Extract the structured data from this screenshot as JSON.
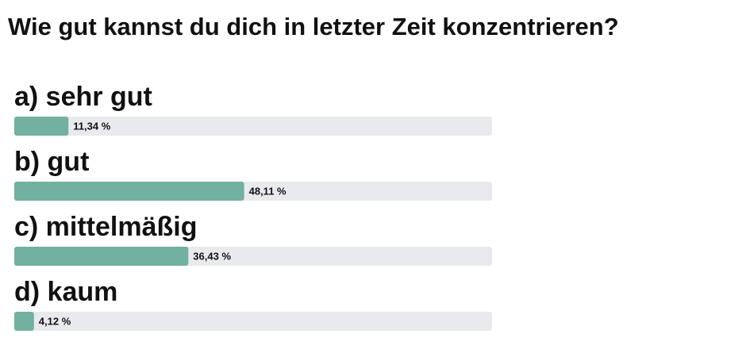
{
  "chart_data": {
    "type": "bar",
    "orientation": "horizontal",
    "title": "Wie gut kannst du dich in letzter Zeit konzentrieren?",
    "categories": [
      "a) sehr gut",
      "b) gut",
      "c) mittelmäßig",
      "d) kaum"
    ],
    "values": [
      11.34,
      48.11,
      36.43,
      4.12
    ],
    "value_labels": [
      "11,34 %",
      "48,11 %",
      "36,43 %",
      "4,12 %"
    ],
    "xlim": [
      0,
      100
    ],
    "color": "#72b09f",
    "track_color": "#e9eaee"
  }
}
